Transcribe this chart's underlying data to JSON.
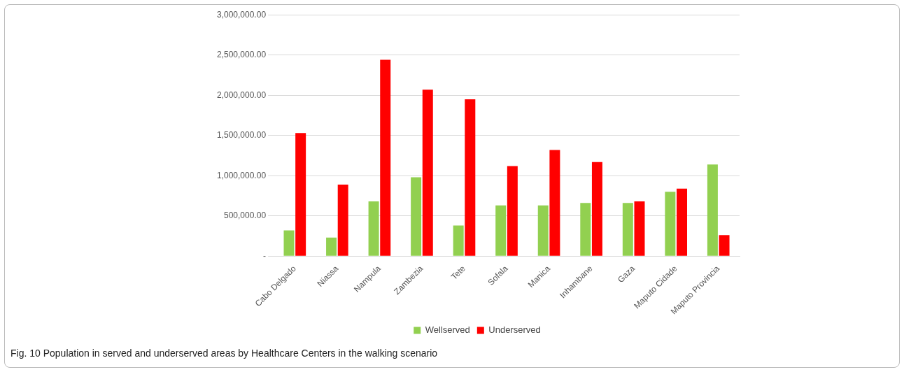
{
  "chart_data": {
    "type": "bar",
    "categories": [
      "Cabo Delgado",
      "Niassa",
      "Nampula",
      "Zambezia",
      "Tete",
      "Sofala",
      "Manica",
      "Inhambane",
      "Gaza",
      "Maputo Cidade",
      "Maputo Provincia"
    ],
    "series": [
      {
        "name": "Wellserved",
        "color": "#92d050",
        "values": [
          320000,
          230000,
          680000,
          980000,
          380000,
          630000,
          630000,
          660000,
          660000,
          800000,
          1140000
        ]
      },
      {
        "name": "Underserved",
        "color": "#ff0000",
        "values": [
          1530000,
          890000,
          2440000,
          2070000,
          1950000,
          1120000,
          1320000,
          1170000,
          680000,
          840000,
          260000
        ]
      }
    ],
    "ylim": [
      0,
      3000000
    ],
    "yticks": [
      {
        "value": 0,
        "label": "-"
      },
      {
        "value": 500000,
        "label": "500,000.00"
      },
      {
        "value": 1000000,
        "label": "1,000,000.00"
      },
      {
        "value": 1500000,
        "label": "1,500,000.00"
      },
      {
        "value": 2000000,
        "label": "2,000,000.00"
      },
      {
        "value": 2500000,
        "label": "2,500,000.00"
      },
      {
        "value": 3000000,
        "label": "3,000,000.00"
      }
    ],
    "grid": "y",
    "legend": "bottom",
    "annotations": [
      "Fig. 10 Population in served and underserved areas by Healthcare Centers in the walking scenario"
    ]
  }
}
